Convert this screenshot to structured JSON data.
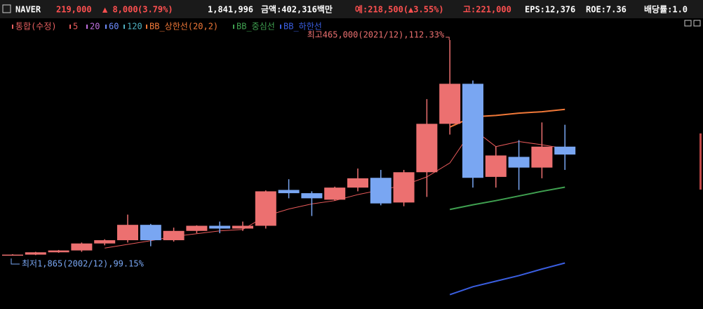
{
  "header": {
    "items": [
      {
        "text": "NAVER",
        "color": "#ffffff"
      },
      {
        "text": "219,000",
        "color": "#ff5050"
      },
      {
        "text": "▲ 8,000",
        "color": "#ff5050"
      },
      {
        "text": "(3.79%)",
        "color": "#ff5050"
      },
      {
        "text": "1,841,996",
        "color": "#ffffff"
      },
      {
        "text": "금액:402,316백만",
        "color": "#ffffff"
      },
      {
        "text": "예:218,500(▲3.55%)",
        "color": "#ff5050"
      },
      {
        "text": "고:221,000",
        "color": "#ff5050"
      },
      {
        "text": "EPS:12,376",
        "color": "#ffffff"
      },
      {
        "text": "ROE:7.36",
        "color": "#ffffff"
      },
      {
        "text": "배당률:1.0",
        "color": "#ffffff"
      }
    ]
  },
  "chart_data": {
    "type": "candlestick",
    "legend_title": "통합(수정)",
    "legend_title_color": "#e86060",
    "up_color": "#ec7070",
    "down_color": "#79a6f2",
    "open": [
      1.9,
      4,
      9,
      13,
      28,
      35,
      68,
      35,
      55,
      66,
      60,
      66,
      143,
      136,
      122,
      148,
      169,
      116,
      181,
      285,
      371,
      171,
      214,
      191,
      236
    ],
    "high": [
      5,
      10,
      14,
      30,
      37,
      90,
      70,
      62,
      67,
      75,
      75,
      142,
      166,
      140,
      150,
      189,
      186,
      186,
      338,
      465,
      378,
      236,
      250,
      288,
      283
    ],
    "low": [
      1.865,
      3,
      8,
      10,
      24,
      30,
      22,
      32,
      50,
      50,
      55,
      60,
      125,
      87,
      120,
      140,
      110,
      108,
      128,
      262,
      148,
      148,
      143,
      168,
      186
    ],
    "close": [
      4,
      9,
      13,
      28,
      35,
      68,
      35,
      55,
      66,
      60,
      66,
      140,
      136,
      125,
      148,
      168,
      114,
      181,
      285,
      371,
      169,
      217,
      191,
      236,
      219
    ],
    "series": [
      {
        "name": "5",
        "color": "#e85a5a",
        "values": [
          null,
          null,
          null,
          null,
          18,
          26,
          34,
          43,
          49,
          55,
          58,
          87,
          102,
          113,
          120,
          133,
          143,
          153,
          171,
          201,
          274,
          236,
          247,
          240,
          232
        ]
      },
      {
        "name": "20",
        "color": "#c070e0",
        "values": [
          null,
          null,
          null,
          null,
          null,
          null,
          null,
          null,
          null,
          null,
          null,
          null,
          null,
          null,
          null,
          null,
          null,
          null,
          null,
          null,
          null,
          null,
          null,
          null,
          null
        ]
      },
      {
        "name": "60",
        "color": "#6e8cff",
        "values": [
          null,
          null,
          null,
          null,
          null,
          null,
          null,
          null,
          null,
          null,
          null,
          null,
          null,
          null,
          null,
          null,
          null,
          null,
          null,
          null,
          null,
          null,
          null,
          null,
          null
        ]
      },
      {
        "name": "120",
        "color": "#4fb0c0",
        "values": [
          null,
          null,
          null,
          null,
          null,
          null,
          null,
          null,
          null,
          null,
          null,
          null,
          null,
          null,
          null,
          null,
          null,
          null,
          null,
          null,
          null,
          null,
          null,
          null,
          null
        ]
      },
      {
        "name": "BB_상한선(20,2)",
        "color": "#f07838",
        "values": [
          null,
          null,
          null,
          null,
          null,
          null,
          null,
          null,
          null,
          null,
          null,
          null,
          null,
          null,
          null,
          null,
          null,
          null,
          null,
          278,
          300,
          303,
          308,
          311,
          316
        ]
      },
      {
        "name": "BB_중심선",
        "color": "#3fa050",
        "values": [
          null,
          null,
          null,
          null,
          null,
          null,
          null,
          null,
          null,
          null,
          null,
          null,
          null,
          null,
          null,
          null,
          null,
          null,
          null,
          101,
          111,
          120,
          130,
          140,
          149
        ]
      },
      {
        "name": "BB_하한선",
        "color": "#3a5ee0",
        "values": [
          null,
          null,
          null,
          null,
          null,
          null,
          null,
          null,
          null,
          null,
          null,
          null,
          null,
          null,
          null,
          null,
          null,
          null,
          null,
          -82,
          -65,
          -53,
          -41,
          -27,
          -14
        ]
      }
    ],
    "annotations": [
      {
        "text": "최고465,000(2021/12),112.33%"
      },
      {
        "text": "최저1,865(2002/12),99.15%"
      }
    ]
  }
}
